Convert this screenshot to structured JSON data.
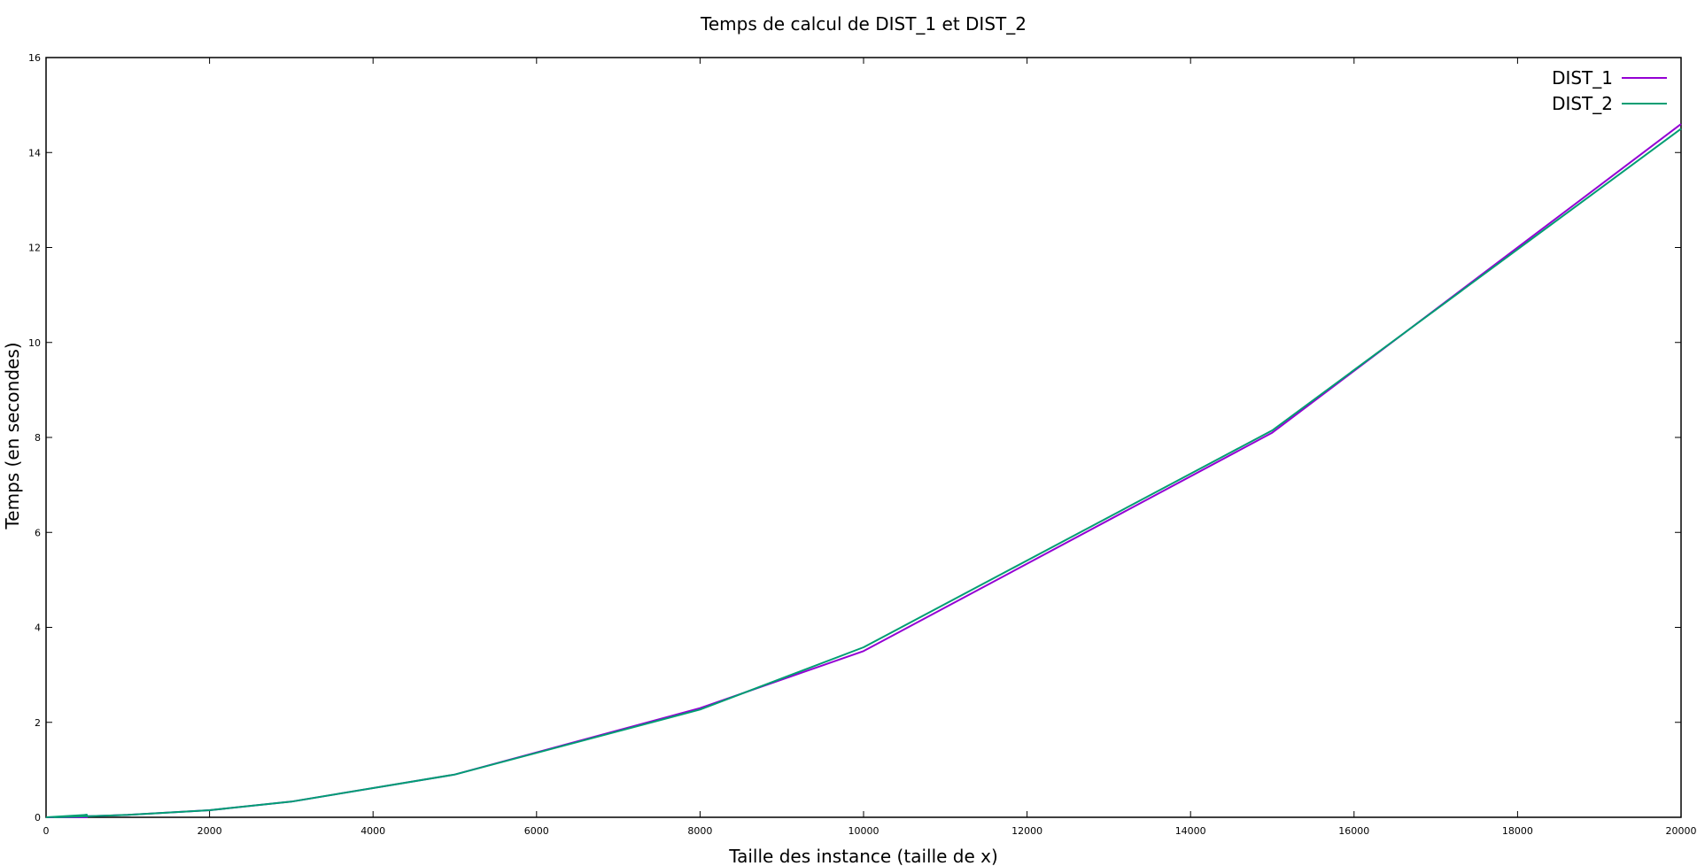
{
  "chart_data": {
    "type": "line",
    "title": "Temps de calcul de DIST_1 et DIST_2",
    "xlabel": "Taille des instance (taille de x)",
    "ylabel": "Temps (en secondes)",
    "xlim": [
      0,
      20000
    ],
    "ylim": [
      0,
      16
    ],
    "x_ticks": [
      "0",
      "2000",
      "4000",
      "6000",
      "8000",
      "10000",
      "12000",
      "14000",
      "16000",
      "18000",
      "20000"
    ],
    "y_ticks": [
      "0",
      "2",
      "4",
      "6",
      "8",
      "10",
      "12",
      "14",
      "16"
    ],
    "grid": false,
    "legend_position": "top-right",
    "series": [
      {
        "name": "DIST_1",
        "color": "#9400d3",
        "x": [
          0,
          500,
          100,
          1000,
          2000,
          3000,
          5000,
          8000,
          10000,
          15000,
          20000
        ],
        "y": [
          0.0,
          0.0,
          0.0,
          0.05,
          0.15,
          0.33,
          0.9,
          2.3,
          3.5,
          8.1,
          14.6
        ]
      },
      {
        "name": "DIST_2",
        "color": "#009e73",
        "x": [
          0,
          500,
          100,
          1000,
          2000,
          3000,
          5000,
          8000,
          10000,
          15000,
          20000
        ],
        "y": [
          0.0,
          0.05,
          0.0,
          0.05,
          0.15,
          0.33,
          0.9,
          2.27,
          3.58,
          8.15,
          14.5
        ]
      }
    ]
  }
}
